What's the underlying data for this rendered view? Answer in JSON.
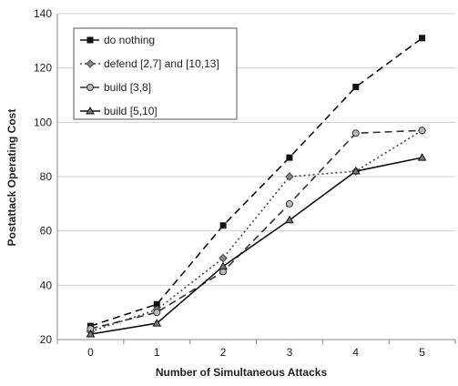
{
  "chart_data": {
    "type": "line",
    "title": "",
    "xlabel": "Number of Simultaneous Attacks",
    "ylabel": "Postattack Operating Cost",
    "x": [
      0,
      1,
      2,
      3,
      4,
      5
    ],
    "xlim": [
      -0.5,
      5.5
    ],
    "ylim": [
      20,
      140
    ],
    "yticks": [
      20,
      40,
      60,
      80,
      100,
      120,
      140
    ],
    "grid": true,
    "legend_position": "top-left",
    "series": [
      {
        "name": "do nothing",
        "values": [
          25,
          33,
          62,
          87,
          113,
          131
        ],
        "dash": "dashed",
        "marker": "square",
        "color": "#111111"
      },
      {
        "name": "defend [2,7] and [10,13]",
        "values": [
          23,
          31,
          50,
          80,
          82,
          97
        ],
        "dash": "dotted",
        "marker": "diamond",
        "color": "#444444"
      },
      {
        "name": "build [3,8]",
        "values": [
          24,
          30,
          45,
          70,
          96,
          97
        ],
        "dash": "dashed",
        "marker": "circle",
        "color": "#333333"
      },
      {
        "name": "build [5,10]",
        "values": [
          22,
          26,
          47,
          64,
          82,
          87
        ],
        "dash": "solid",
        "marker": "triangle",
        "color": "#111111"
      }
    ]
  }
}
